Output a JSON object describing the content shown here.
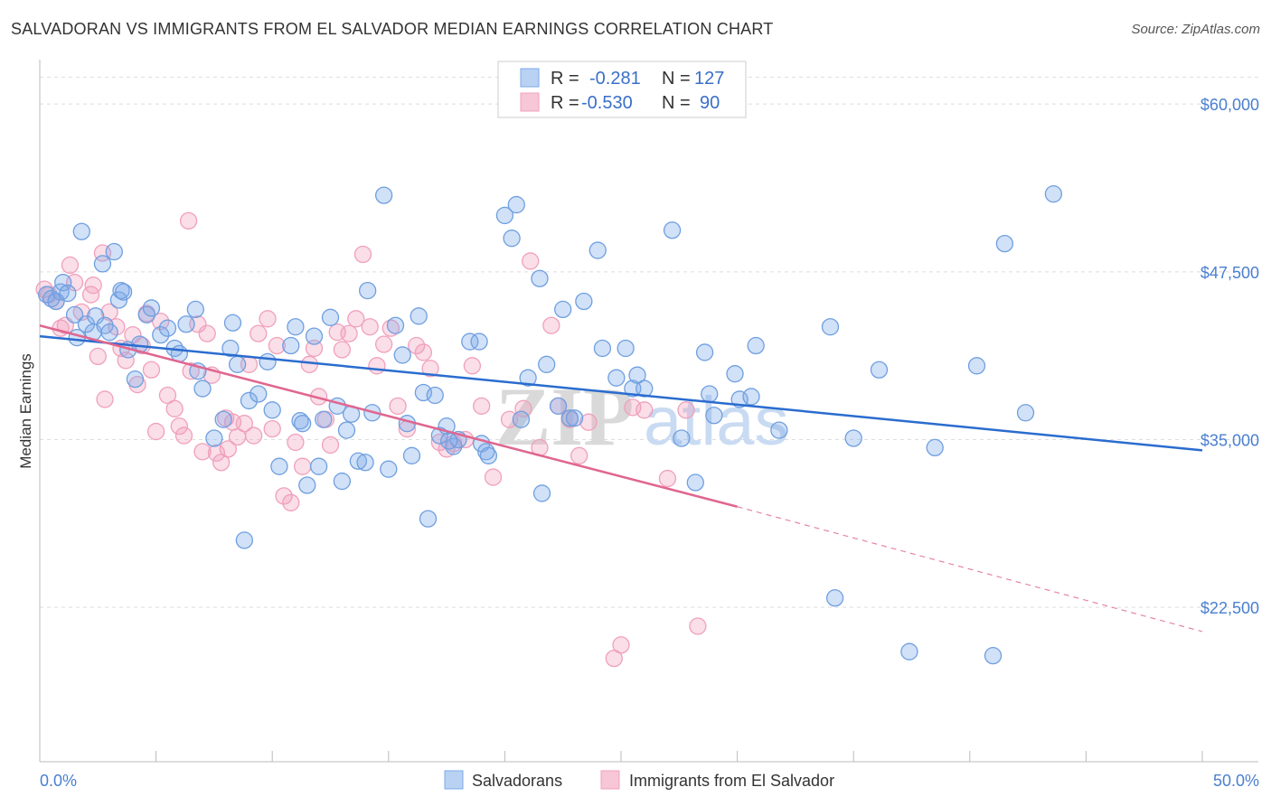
{
  "title": "SALVADORAN VS IMMIGRANTS FROM EL SALVADOR MEDIAN EARNINGS CORRELATION CHART",
  "source": "Source: ZipAtlas.com",
  "watermark": {
    "zip": "ZIP",
    "atlas": "atlas"
  },
  "legend": {
    "rows": [
      {
        "r_label": "R =",
        "r_value": "-0.281",
        "n_label": "N =",
        "n_value": "127"
      },
      {
        "r_label": "R =",
        "r_value": "-0.530",
        "n_label": "N =",
        "n_value": "90"
      }
    ]
  },
  "bottom_legend": [
    "Salvadorans",
    "Immigrants from El Salvador"
  ],
  "chart_data": {
    "type": "scatter",
    "title": "SALVADORAN VS IMMIGRANTS FROM EL SALVADOR MEDIAN EARNINGS CORRELATION CHART",
    "xlabel": "",
    "ylabel": "Median Earnings",
    "xlim": [
      0,
      50
    ],
    "ylim": [
      11000,
      62500
    ],
    "x_tick_labels": [
      "0.0%",
      "50.0%"
    ],
    "y_ticks": [
      22500,
      35000,
      47500,
      60000
    ],
    "y_tick_labels": [
      "$22,500",
      "$35,000",
      "$47,500",
      "$60,000"
    ],
    "grid": true,
    "legend_position": "top-center",
    "colors": {
      "Salvadorans": "#7aaae8",
      "Immigrants from El Salvador": "#f0a0bc",
      "blue_line": "#2a6ccf",
      "pink_line": "#e06690"
    },
    "series": [
      {
        "name": "Salvadorans",
        "r": -0.281,
        "n": 127,
        "trend": {
          "x": [
            0,
            50
          ],
          "y": [
            42700,
            34200
          ]
        },
        "points": [
          [
            0.3,
            45800
          ],
          [
            0.5,
            45500
          ],
          [
            0.7,
            45300
          ],
          [
            0.9,
            46000
          ],
          [
            1.0,
            46700
          ],
          [
            1.2,
            45900
          ],
          [
            1.5,
            44300
          ],
          [
            1.6,
            42600
          ],
          [
            1.8,
            50500
          ],
          [
            2.0,
            43600
          ],
          [
            2.3,
            43000
          ],
          [
            2.4,
            44200
          ],
          [
            2.7,
            48100
          ],
          [
            2.8,
            43500
          ],
          [
            3.0,
            43000
          ],
          [
            3.2,
            49000
          ],
          [
            3.4,
            45400
          ],
          [
            3.5,
            46100
          ],
          [
            3.6,
            46000
          ],
          [
            3.8,
            41700
          ],
          [
            4.1,
            39500
          ],
          [
            4.3,
            42100
          ],
          [
            4.6,
            44300
          ],
          [
            4.8,
            44800
          ],
          [
            5.2,
            42800
          ],
          [
            5.5,
            43300
          ],
          [
            5.8,
            41800
          ],
          [
            6.0,
            41400
          ],
          [
            6.3,
            43600
          ],
          [
            6.7,
            44700
          ],
          [
            6.8,
            40100
          ],
          [
            7.0,
            38800
          ],
          [
            7.5,
            35100
          ],
          [
            7.9,
            36500
          ],
          [
            8.3,
            43700
          ],
          [
            8.2,
            41800
          ],
          [
            8.5,
            40600
          ],
          [
            8.8,
            27500
          ],
          [
            9.0,
            37900
          ],
          [
            9.4,
            38400
          ],
          [
            9.8,
            40800
          ],
          [
            10.0,
            37200
          ],
          [
            10.3,
            33000
          ],
          [
            10.8,
            42000
          ],
          [
            11.0,
            43400
          ],
          [
            11.2,
            36400
          ],
          [
            11.3,
            36200
          ],
          [
            11.5,
            31600
          ],
          [
            11.8,
            42700
          ],
          [
            12.0,
            33000
          ],
          [
            12.2,
            36500
          ],
          [
            12.5,
            44100
          ],
          [
            12.8,
            37500
          ],
          [
            13.0,
            31900
          ],
          [
            13.2,
            35700
          ],
          [
            13.4,
            36900
          ],
          [
            13.7,
            33400
          ],
          [
            14.0,
            33300
          ],
          [
            14.1,
            46100
          ],
          [
            14.3,
            37000
          ],
          [
            14.8,
            53200
          ],
          [
            15.0,
            32800
          ],
          [
            15.3,
            43500
          ],
          [
            15.6,
            41300
          ],
          [
            15.8,
            36200
          ],
          [
            16.0,
            33800
          ],
          [
            16.3,
            44200
          ],
          [
            16.5,
            38500
          ],
          [
            16.7,
            29100
          ],
          [
            17.0,
            38300
          ],
          [
            17.2,
            35300
          ],
          [
            17.5,
            36000
          ],
          [
            17.8,
            34500
          ],
          [
            18.0,
            35000
          ],
          [
            17.6,
            34900
          ],
          [
            18.5,
            42300
          ],
          [
            18.9,
            42300
          ],
          [
            19.0,
            34700
          ],
          [
            19.2,
            34100
          ],
          [
            19.3,
            33800
          ],
          [
            20.0,
            51700
          ],
          [
            20.3,
            50000
          ],
          [
            20.5,
            52500
          ],
          [
            20.7,
            36500
          ],
          [
            21.0,
            39600
          ],
          [
            21.5,
            47000
          ],
          [
            21.6,
            31000
          ],
          [
            21.8,
            40600
          ],
          [
            22.3,
            37500
          ],
          [
            22.5,
            44700
          ],
          [
            22.8,
            36600
          ],
          [
            23.0,
            36600
          ],
          [
            23.4,
            45300
          ],
          [
            24.0,
            49100
          ],
          [
            24.2,
            41800
          ],
          [
            24.8,
            39600
          ],
          [
            25.2,
            41800
          ],
          [
            25.5,
            38800
          ],
          [
            25.7,
            39800
          ],
          [
            26.0,
            38800
          ],
          [
            27.2,
            50600
          ],
          [
            27.6,
            35100
          ],
          [
            28.2,
            31800
          ],
          [
            28.6,
            41500
          ],
          [
            28.8,
            38400
          ],
          [
            29.0,
            36800
          ],
          [
            29.9,
            39900
          ],
          [
            30.1,
            38000
          ],
          [
            30.6,
            38200
          ],
          [
            30.8,
            42000
          ],
          [
            31.8,
            35700
          ],
          [
            34.0,
            43400
          ],
          [
            34.2,
            23200
          ],
          [
            35.0,
            35100
          ],
          [
            36.1,
            40200
          ],
          [
            37.4,
            19200
          ],
          [
            38.5,
            34400
          ],
          [
            40.3,
            40500
          ],
          [
            41.0,
            18900
          ],
          [
            41.5,
            49600
          ],
          [
            42.4,
            37000
          ],
          [
            43.6,
            53300
          ]
        ]
      },
      {
        "name": "Immigrants from El Salvador",
        "r": -0.53,
        "n": 90,
        "trend": {
          "x": [
            0,
            30
          ],
          "y": [
            43500,
            30000
          ]
        },
        "trend_dashed": {
          "x": [
            30,
            50
          ],
          "y": [
            30000,
            20700
          ]
        },
        "points": [
          [
            0.2,
            46200
          ],
          [
            0.4,
            45800
          ],
          [
            0.7,
            45300
          ],
          [
            0.9,
            43300
          ],
          [
            1.1,
            43500
          ],
          [
            1.3,
            48000
          ],
          [
            1.5,
            46700
          ],
          [
            1.8,
            44500
          ],
          [
            2.2,
            45800
          ],
          [
            2.3,
            46500
          ],
          [
            2.5,
            41200
          ],
          [
            2.7,
            48900
          ],
          [
            2.8,
            38000
          ],
          [
            3.0,
            44500
          ],
          [
            3.3,
            43400
          ],
          [
            3.5,
            41800
          ],
          [
            3.7,
            40900
          ],
          [
            4.0,
            42800
          ],
          [
            4.2,
            39100
          ],
          [
            4.4,
            42000
          ],
          [
            4.6,
            44400
          ],
          [
            4.8,
            40200
          ],
          [
            5.0,
            35600
          ],
          [
            5.2,
            43800
          ],
          [
            5.5,
            38300
          ],
          [
            5.8,
            37300
          ],
          [
            6.0,
            36000
          ],
          [
            6.2,
            35300
          ],
          [
            6.4,
            51300
          ],
          [
            6.5,
            40100
          ],
          [
            6.8,
            43600
          ],
          [
            7.0,
            34100
          ],
          [
            7.2,
            42900
          ],
          [
            7.4,
            39800
          ],
          [
            7.6,
            34000
          ],
          [
            7.8,
            33300
          ],
          [
            8.0,
            36600
          ],
          [
            8.1,
            34300
          ],
          [
            8.3,
            36300
          ],
          [
            8.5,
            35200
          ],
          [
            8.8,
            36200
          ],
          [
            9.0,
            40600
          ],
          [
            9.2,
            35300
          ],
          [
            9.4,
            42900
          ],
          [
            9.8,
            44000
          ],
          [
            10.0,
            35800
          ],
          [
            10.2,
            42000
          ],
          [
            10.5,
            30800
          ],
          [
            10.8,
            30300
          ],
          [
            11.0,
            34800
          ],
          [
            11.3,
            33000
          ],
          [
            11.6,
            40600
          ],
          [
            11.8,
            41800
          ],
          [
            12.0,
            38200
          ],
          [
            12.3,
            36500
          ],
          [
            12.5,
            34600
          ],
          [
            12.8,
            43000
          ],
          [
            13.0,
            41700
          ],
          [
            13.3,
            42900
          ],
          [
            13.6,
            44000
          ],
          [
            13.9,
            48800
          ],
          [
            14.2,
            43400
          ],
          [
            14.5,
            40500
          ],
          [
            14.8,
            42100
          ],
          [
            15.1,
            43300
          ],
          [
            15.4,
            37500
          ],
          [
            15.8,
            35800
          ],
          [
            16.2,
            42000
          ],
          [
            16.5,
            41500
          ],
          [
            16.8,
            40300
          ],
          [
            17.2,
            34800
          ],
          [
            17.5,
            34300
          ],
          [
            17.8,
            34700
          ],
          [
            18.3,
            35000
          ],
          [
            18.6,
            40500
          ],
          [
            19.0,
            37500
          ],
          [
            19.5,
            32200
          ],
          [
            20.2,
            36500
          ],
          [
            20.8,
            37300
          ],
          [
            21.1,
            48300
          ],
          [
            21.5,
            34400
          ],
          [
            22.0,
            43500
          ],
          [
            22.3,
            37500
          ],
          [
            22.8,
            36500
          ],
          [
            23.2,
            33800
          ],
          [
            23.6,
            36300
          ],
          [
            25.0,
            19700
          ],
          [
            25.5,
            37400
          ],
          [
            24.7,
            18700
          ],
          [
            26.0,
            37200
          ],
          [
            27.0,
            32100
          ],
          [
            27.8,
            37200
          ],
          [
            28.3,
            21100
          ]
        ]
      }
    ]
  }
}
